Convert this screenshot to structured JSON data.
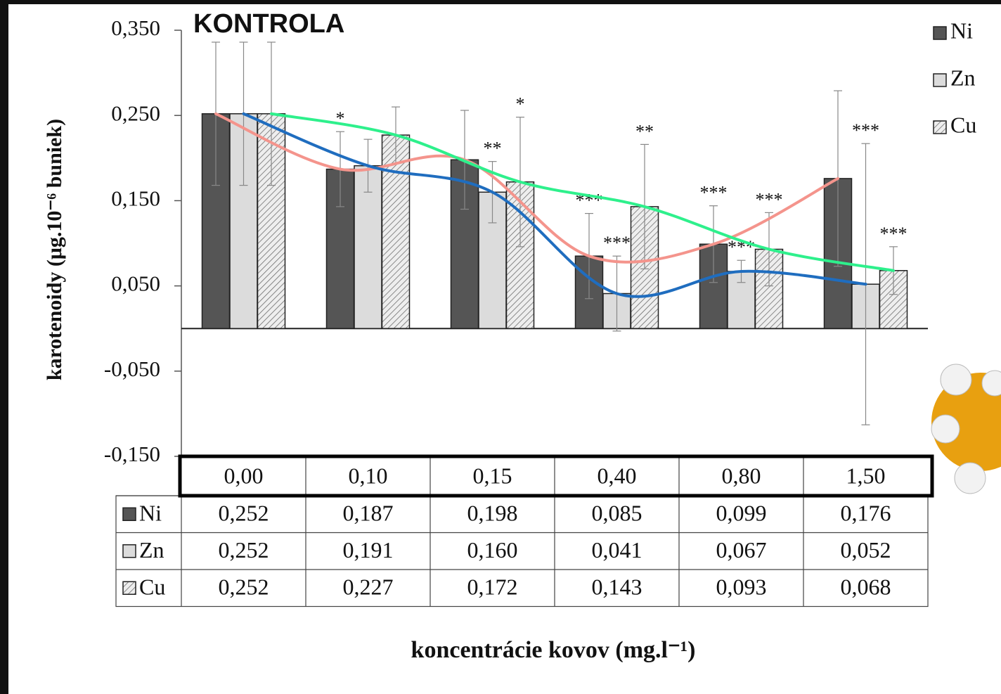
{
  "chart_data": {
    "type": "bar",
    "title": "KONTROLA",
    "y_label": "karotenoidy (μg.10⁻⁶ buniek)",
    "x_label": "koncentrácie kovov (mg.l⁻¹)",
    "categories": [
      "0,00",
      "0,10",
      "0,15",
      "0,40",
      "0,80",
      "1,50"
    ],
    "ylim": [
      -0.15,
      0.35
    ],
    "yticks": [
      {
        "value": 0.35,
        "label": "0,350"
      },
      {
        "value": 0.25,
        "label": "0,250"
      },
      {
        "value": 0.15,
        "label": "0,150"
      },
      {
        "value": 0.05,
        "label": "0,050"
      },
      {
        "value": -0.05,
        "label": "-0,050"
      },
      {
        "value": -0.15,
        "label": "-0,150"
      }
    ],
    "legend": "upper right",
    "series": [
      {
        "name": "Ni",
        "color": "#555555",
        "hatch": false,
        "line_color": "#f4948c",
        "values": [
          0.252,
          0.187,
          0.198,
          0.085,
          0.099,
          0.176
        ],
        "value_labels": [
          "0,252",
          "0,187",
          "0,198",
          "0,085",
          "0,099",
          "0,176"
        ],
        "errors": [
          0.084,
          0.044,
          0.058,
          0.05,
          0.045,
          0.103
        ],
        "significance": [
          null,
          "*",
          null,
          "***",
          "***",
          null
        ]
      },
      {
        "name": "Zn",
        "color": "#dcdcdc",
        "hatch": false,
        "line_color": "#1f6dbf",
        "values": [
          0.252,
          0.191,
          0.16,
          0.041,
          0.067,
          0.052
        ],
        "value_labels": [
          "0,252",
          "0,191",
          "0,160",
          "0,041",
          "0,067",
          "0,052"
        ],
        "errors": [
          0.084,
          0.031,
          0.036,
          0.044,
          0.013,
          0.165
        ],
        "significance": [
          null,
          null,
          "**",
          "***",
          "***",
          "***"
        ]
      },
      {
        "name": "Cu",
        "color": "#e8e8e8",
        "hatch": true,
        "line_color": "#2ef08c",
        "values": [
          0.252,
          0.227,
          0.172,
          0.143,
          0.093,
          0.068
        ],
        "value_labels": [
          "0,252",
          "0,227",
          "0,172",
          "0,143",
          "0,093",
          "0,068"
        ],
        "errors": [
          0.084,
          0.033,
          0.076,
          0.073,
          0.043,
          0.028
        ],
        "significance": [
          null,
          null,
          "*",
          "**",
          "***",
          "***"
        ]
      }
    ]
  }
}
